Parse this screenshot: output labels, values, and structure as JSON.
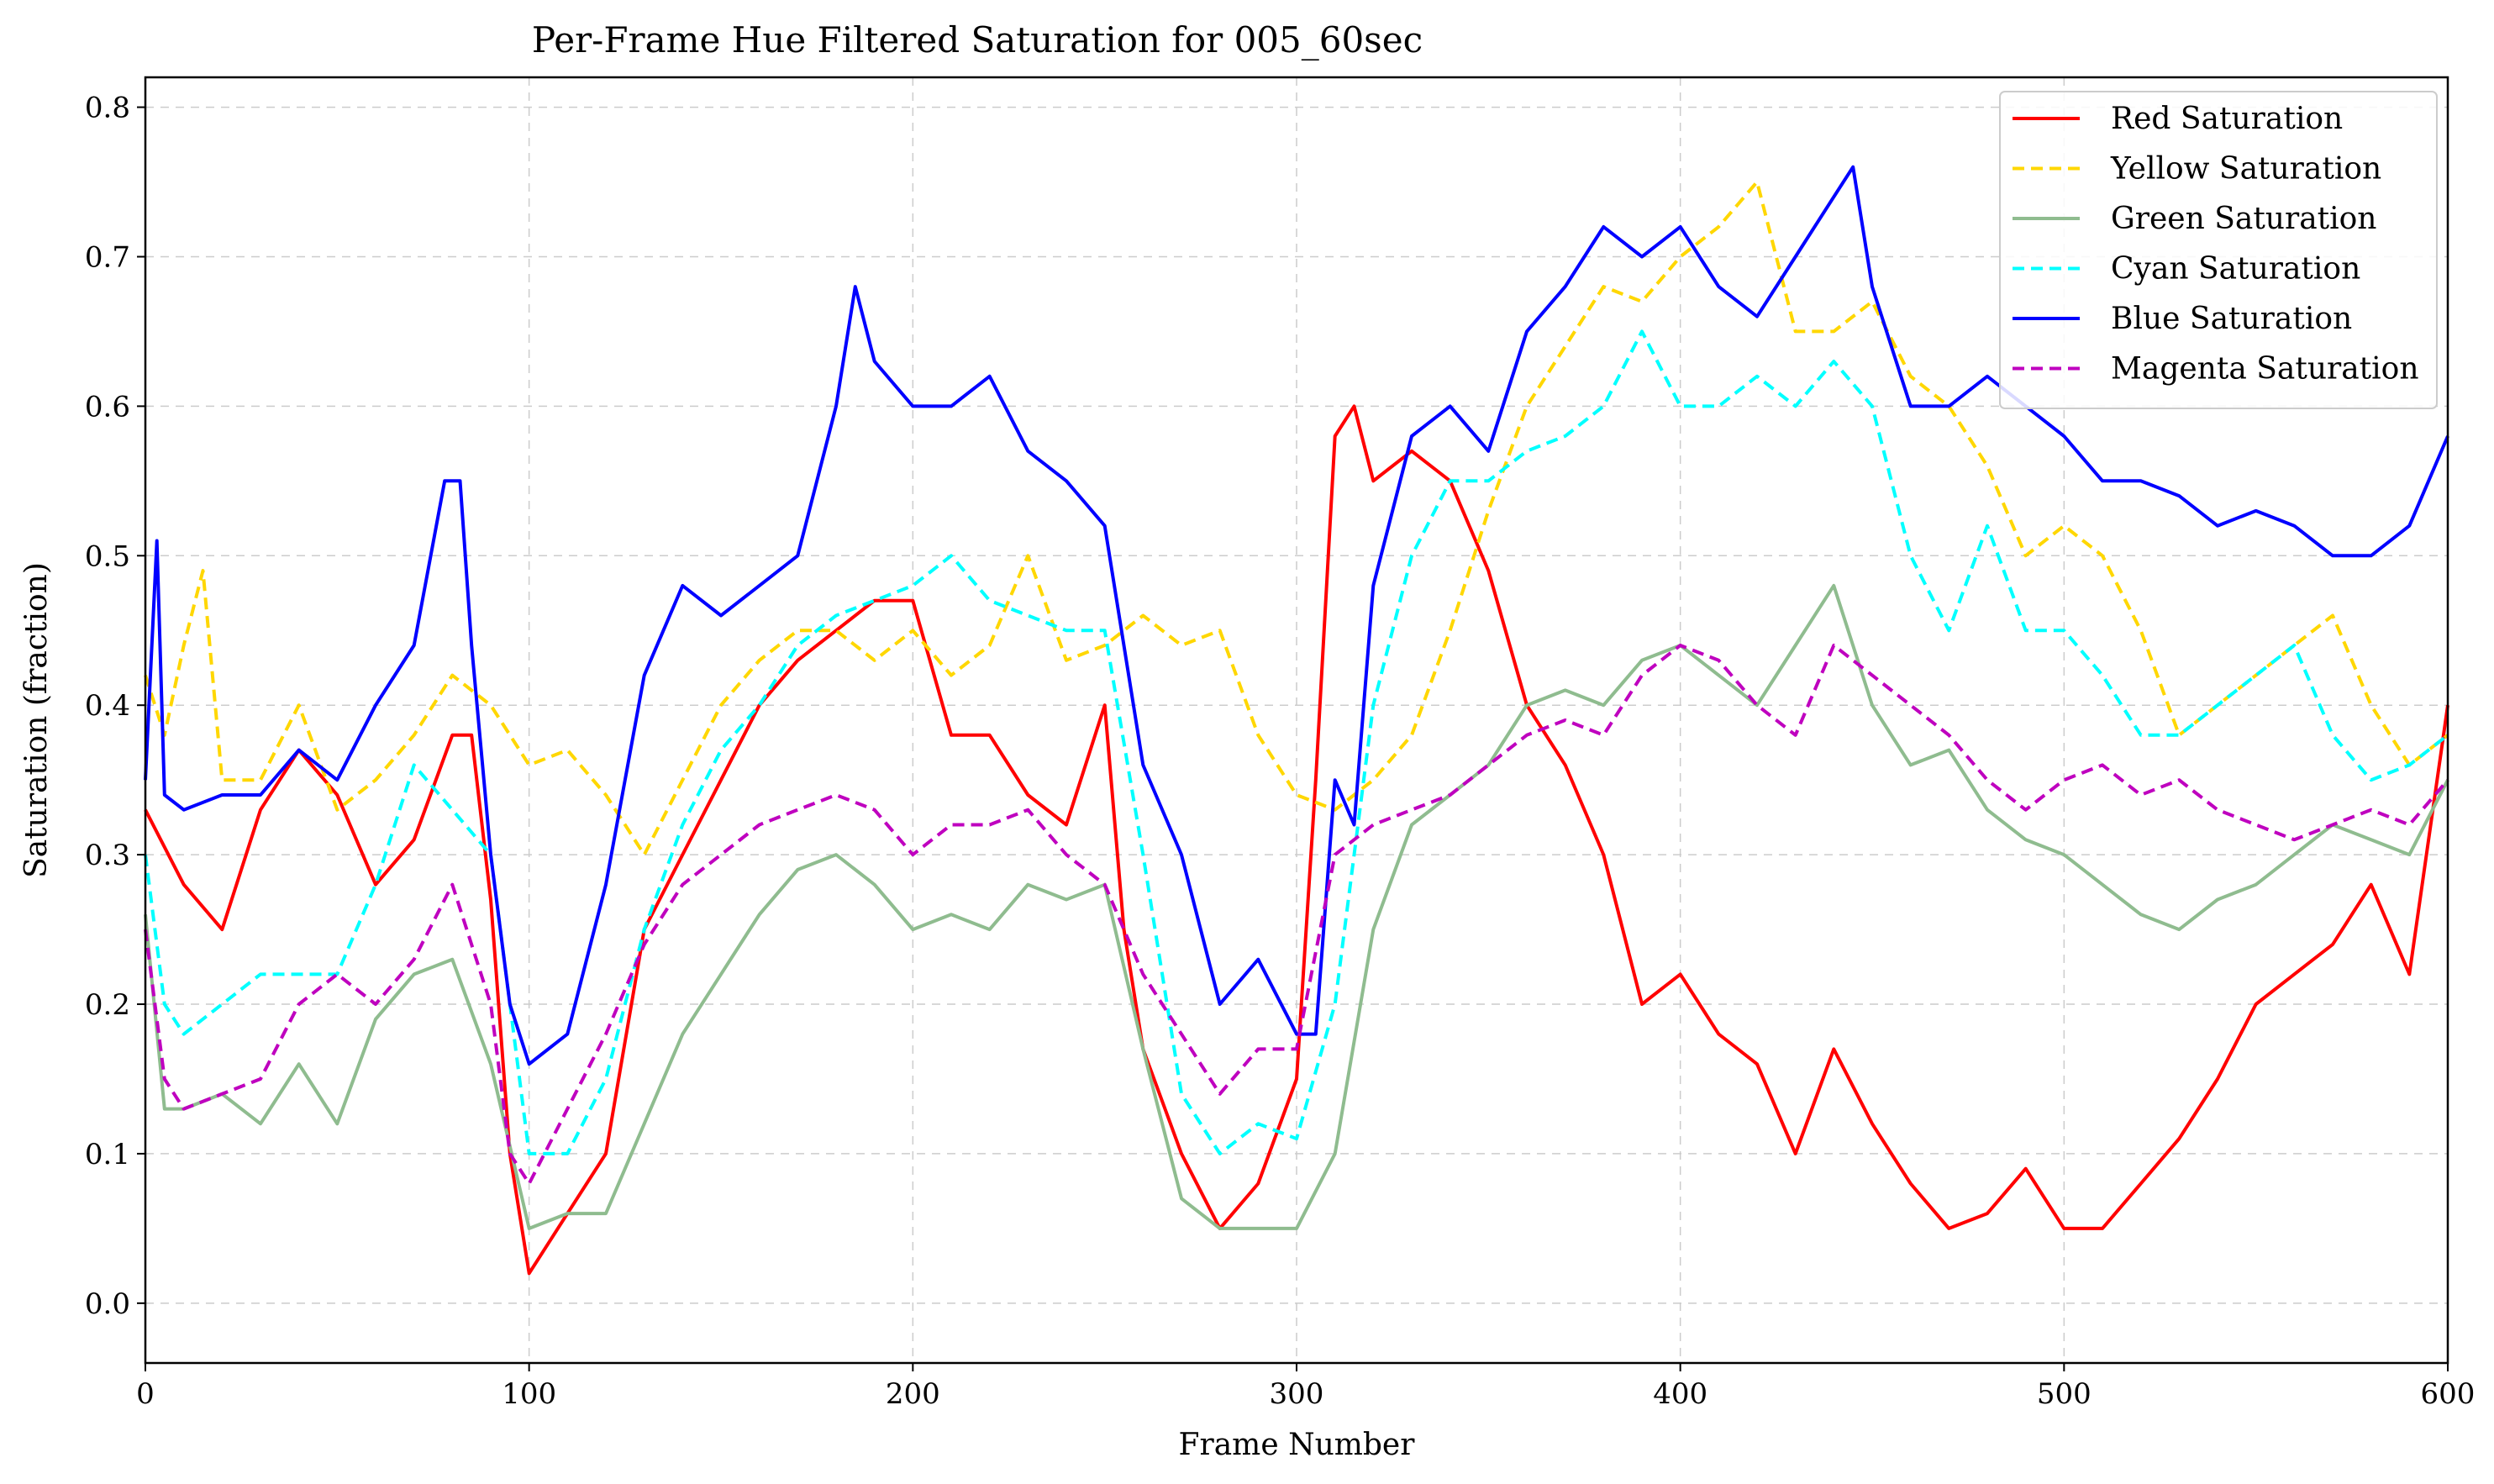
{
  "chart_data": {
    "type": "line",
    "title": "Per-Frame Hue Filtered Saturation for 005_60sec",
    "xlabel": "Frame Number",
    "ylabel": "Saturation (fraction)",
    "xlim": [
      0,
      600
    ],
    "ylim": [
      -0.04,
      0.82
    ],
    "xticks": [
      0,
      100,
      200,
      300,
      400,
      500,
      600
    ],
    "yticks": [
      0.0,
      0.1,
      0.2,
      0.3,
      0.4,
      0.5,
      0.6,
      0.7,
      0.8
    ],
    "grid": true,
    "legend_position": "top-right",
    "series": [
      {
        "name": "Red Saturation",
        "color": "#ff0000",
        "dashed": false,
        "x": [
          0,
          10,
          20,
          30,
          40,
          50,
          60,
          70,
          80,
          85,
          90,
          95,
          100,
          110,
          120,
          130,
          140,
          150,
          160,
          170,
          180,
          190,
          200,
          210,
          220,
          230,
          240,
          250,
          255,
          260,
          270,
          280,
          290,
          300,
          305,
          310,
          315,
          320,
          330,
          340,
          350,
          360,
          370,
          380,
          390,
          400,
          410,
          420,
          430,
          440,
          450,
          460,
          470,
          480,
          490,
          500,
          510,
          520,
          530,
          540,
          550,
          560,
          570,
          580,
          590,
          600
        ],
        "y": [
          0.33,
          0.28,
          0.25,
          0.33,
          0.37,
          0.34,
          0.28,
          0.31,
          0.38,
          0.38,
          0.27,
          0.1,
          0.02,
          0.06,
          0.1,
          0.25,
          0.3,
          0.35,
          0.4,
          0.43,
          0.45,
          0.47,
          0.47,
          0.38,
          0.38,
          0.34,
          0.32,
          0.4,
          0.25,
          0.17,
          0.1,
          0.05,
          0.08,
          0.15,
          0.35,
          0.58,
          0.6,
          0.55,
          0.57,
          0.55,
          0.49,
          0.4,
          0.36,
          0.3,
          0.2,
          0.22,
          0.18,
          0.16,
          0.1,
          0.17,
          0.12,
          0.08,
          0.05,
          0.06,
          0.09,
          0.05,
          0.05,
          0.08,
          0.11,
          0.15,
          0.2,
          0.22,
          0.24,
          0.28,
          0.22,
          0.4
        ]
      },
      {
        "name": "Yellow Saturation",
        "color": "#ffd700",
        "dashed": true,
        "x": [
          0,
          5,
          10,
          15,
          20,
          30,
          40,
          50,
          60,
          70,
          80,
          90,
          100,
          110,
          120,
          130,
          140,
          150,
          160,
          170,
          180,
          190,
          200,
          210,
          220,
          230,
          240,
          250,
          260,
          270,
          280,
          290,
          300,
          310,
          320,
          330,
          340,
          350,
          360,
          370,
          380,
          390,
          400,
          410,
          420,
          430,
          440,
          450,
          460,
          470,
          480,
          490,
          500,
          510,
          520,
          530,
          540,
          550,
          560,
          570,
          580,
          590,
          600
        ],
        "y": [
          0.42,
          0.38,
          0.44,
          0.49,
          0.35,
          0.35,
          0.4,
          0.33,
          0.35,
          0.38,
          0.42,
          0.4,
          0.36,
          0.37,
          0.34,
          0.3,
          0.35,
          0.4,
          0.43,
          0.45,
          0.45,
          0.43,
          0.45,
          0.42,
          0.44,
          0.5,
          0.43,
          0.44,
          0.46,
          0.44,
          0.45,
          0.38,
          0.34,
          0.33,
          0.35,
          0.38,
          0.45,
          0.53,
          0.6,
          0.64,
          0.68,
          0.67,
          0.7,
          0.72,
          0.75,
          0.65,
          0.65,
          0.67,
          0.62,
          0.6,
          0.56,
          0.5,
          0.52,
          0.5,
          0.45,
          0.38,
          0.4,
          0.42,
          0.44,
          0.46,
          0.4,
          0.36,
          0.38
        ]
      },
      {
        "name": "Green Saturation",
        "color": "#8fbc8f",
        "dashed": false,
        "x": [
          0,
          5,
          10,
          20,
          30,
          40,
          50,
          60,
          70,
          80,
          90,
          100,
          110,
          120,
          130,
          140,
          150,
          160,
          170,
          180,
          190,
          200,
          210,
          220,
          230,
          240,
          250,
          260,
          270,
          280,
          290,
          300,
          310,
          320,
          330,
          340,
          350,
          360,
          370,
          380,
          390,
          400,
          410,
          420,
          430,
          440,
          450,
          460,
          470,
          480,
          490,
          500,
          510,
          520,
          530,
          540,
          550,
          560,
          570,
          580,
          590,
          600
        ],
        "y": [
          0.26,
          0.13,
          0.13,
          0.14,
          0.12,
          0.16,
          0.12,
          0.19,
          0.22,
          0.23,
          0.16,
          0.05,
          0.06,
          0.06,
          0.12,
          0.18,
          0.22,
          0.26,
          0.29,
          0.3,
          0.28,
          0.25,
          0.26,
          0.25,
          0.28,
          0.27,
          0.28,
          0.17,
          0.07,
          0.05,
          0.05,
          0.05,
          0.1,
          0.25,
          0.32,
          0.34,
          0.36,
          0.4,
          0.41,
          0.4,
          0.43,
          0.44,
          0.42,
          0.4,
          0.44,
          0.48,
          0.4,
          0.36,
          0.37,
          0.33,
          0.31,
          0.3,
          0.28,
          0.26,
          0.25,
          0.27,
          0.28,
          0.3,
          0.32,
          0.31,
          0.3,
          0.35
        ]
      },
      {
        "name": "Cyan Saturation",
        "color": "#00ffff",
        "dashed": true,
        "x": [
          0,
          5,
          10,
          20,
          30,
          40,
          50,
          60,
          70,
          80,
          90,
          100,
          110,
          120,
          130,
          140,
          150,
          160,
          170,
          180,
          190,
          200,
          210,
          220,
          230,
          240,
          250,
          260,
          270,
          280,
          290,
          300,
          310,
          320,
          330,
          340,
          350,
          360,
          370,
          380,
          390,
          400,
          410,
          420,
          430,
          440,
          450,
          460,
          470,
          480,
          490,
          500,
          510,
          520,
          530,
          540,
          550,
          560,
          570,
          580,
          590,
          600
        ],
        "y": [
          0.3,
          0.2,
          0.18,
          0.2,
          0.22,
          0.22,
          0.22,
          0.28,
          0.36,
          0.33,
          0.3,
          0.1,
          0.1,
          0.15,
          0.25,
          0.32,
          0.37,
          0.4,
          0.44,
          0.46,
          0.47,
          0.48,
          0.5,
          0.47,
          0.46,
          0.45,
          0.45,
          0.3,
          0.14,
          0.1,
          0.12,
          0.11,
          0.2,
          0.4,
          0.5,
          0.55,
          0.55,
          0.57,
          0.58,
          0.6,
          0.65,
          0.6,
          0.6,
          0.62,
          0.6,
          0.63,
          0.6,
          0.5,
          0.45,
          0.52,
          0.45,
          0.45,
          0.42,
          0.38,
          0.38,
          0.4,
          0.42,
          0.44,
          0.38,
          0.35,
          0.36,
          0.38
        ]
      },
      {
        "name": "Blue Saturation",
        "color": "#0000ff",
        "dashed": false,
        "x": [
          0,
          3,
          5,
          10,
          20,
          30,
          40,
          50,
          60,
          70,
          78,
          82,
          85,
          90,
          95,
          100,
          110,
          120,
          130,
          140,
          150,
          160,
          170,
          180,
          185,
          190,
          200,
          210,
          220,
          230,
          240,
          250,
          260,
          270,
          280,
          290,
          300,
          305,
          310,
          315,
          320,
          330,
          340,
          350,
          360,
          370,
          380,
          390,
          400,
          410,
          420,
          430,
          440,
          445,
          450,
          460,
          470,
          480,
          490,
          500,
          510,
          520,
          530,
          540,
          550,
          560,
          570,
          580,
          590,
          600
        ],
        "y": [
          0.35,
          0.51,
          0.34,
          0.33,
          0.34,
          0.34,
          0.37,
          0.35,
          0.4,
          0.44,
          0.55,
          0.55,
          0.44,
          0.3,
          0.2,
          0.16,
          0.18,
          0.28,
          0.42,
          0.48,
          0.46,
          0.48,
          0.5,
          0.6,
          0.68,
          0.63,
          0.6,
          0.6,
          0.62,
          0.57,
          0.55,
          0.52,
          0.36,
          0.3,
          0.2,
          0.23,
          0.18,
          0.18,
          0.35,
          0.32,
          0.48,
          0.58,
          0.6,
          0.57,
          0.65,
          0.68,
          0.72,
          0.7,
          0.72,
          0.68,
          0.66,
          0.7,
          0.74,
          0.76,
          0.68,
          0.6,
          0.6,
          0.62,
          0.6,
          0.58,
          0.55,
          0.55,
          0.54,
          0.52,
          0.53,
          0.52,
          0.5,
          0.5,
          0.52,
          0.58
        ]
      },
      {
        "name": "Magenta Saturation",
        "color": "#bf00bf",
        "dashed": true,
        "x": [
          0,
          5,
          10,
          20,
          30,
          40,
          50,
          60,
          70,
          80,
          90,
          95,
          100,
          110,
          120,
          130,
          140,
          150,
          160,
          170,
          180,
          190,
          200,
          210,
          220,
          230,
          240,
          250,
          260,
          270,
          280,
          290,
          300,
          310,
          320,
          330,
          340,
          350,
          360,
          370,
          380,
          390,
          400,
          410,
          420,
          430,
          440,
          450,
          460,
          470,
          480,
          490,
          500,
          510,
          520,
          530,
          540,
          550,
          560,
          570,
          580,
          590,
          600
        ],
        "y": [
          0.25,
          0.15,
          0.13,
          0.14,
          0.15,
          0.2,
          0.22,
          0.2,
          0.23,
          0.28,
          0.2,
          0.1,
          0.08,
          0.13,
          0.18,
          0.24,
          0.28,
          0.3,
          0.32,
          0.33,
          0.34,
          0.33,
          0.3,
          0.32,
          0.32,
          0.33,
          0.3,
          0.28,
          0.22,
          0.18,
          0.14,
          0.17,
          0.17,
          0.3,
          0.32,
          0.33,
          0.34,
          0.36,
          0.38,
          0.39,
          0.38,
          0.42,
          0.44,
          0.43,
          0.4,
          0.38,
          0.44,
          0.42,
          0.4,
          0.38,
          0.35,
          0.33,
          0.35,
          0.36,
          0.34,
          0.35,
          0.33,
          0.32,
          0.31,
          0.32,
          0.33,
          0.32,
          0.35
        ]
      }
    ]
  }
}
